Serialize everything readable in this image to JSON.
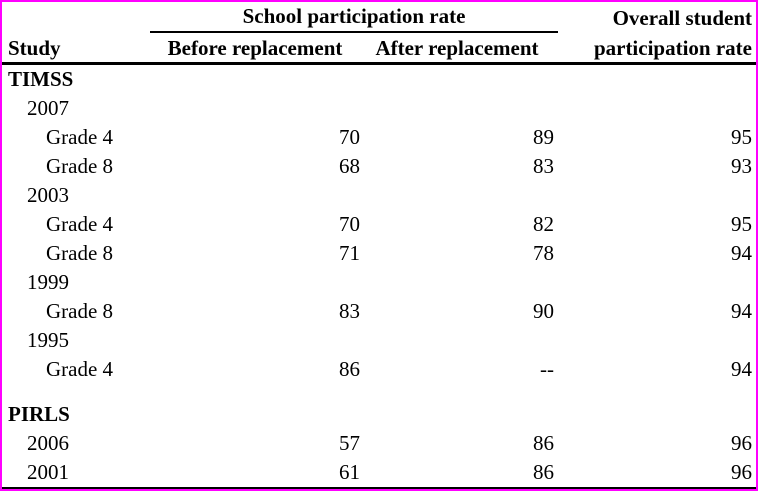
{
  "colors": {
    "frame_border": "#ff00ff",
    "text": "#000000",
    "rule": "#000000",
    "background": "#ffffff"
  },
  "header": {
    "group_title": "School participation rate",
    "study": "Study",
    "before": "Before replacement",
    "after": "After replacement",
    "overall_line1": "Overall student",
    "overall_line2": "participation rate"
  },
  "rows": [
    {
      "label": "TIMSS",
      "indent": 0,
      "bold": true,
      "before": "",
      "after": "",
      "overall": ""
    },
    {
      "label": "2007",
      "indent": 1,
      "bold": false,
      "before": "",
      "after": "",
      "overall": ""
    },
    {
      "label": "Grade 4",
      "indent": 2,
      "bold": false,
      "before": "70",
      "after": "89",
      "overall": "95"
    },
    {
      "label": "Grade 8",
      "indent": 2,
      "bold": false,
      "before": "68",
      "after": "83",
      "overall": "93"
    },
    {
      "label": "2003",
      "indent": 1,
      "bold": false,
      "before": "",
      "after": "",
      "overall": ""
    },
    {
      "label": "Grade 4",
      "indent": 2,
      "bold": false,
      "before": "70",
      "after": "82",
      "overall": "95"
    },
    {
      "label": "Grade 8",
      "indent": 2,
      "bold": false,
      "before": "71",
      "after": "78",
      "overall": "94"
    },
    {
      "label": "1999",
      "indent": 1,
      "bold": false,
      "before": "",
      "after": "",
      "overall": ""
    },
    {
      "label": "Grade 8",
      "indent": 2,
      "bold": false,
      "before": "83",
      "after": "90",
      "overall": "94"
    },
    {
      "label": "1995",
      "indent": 1,
      "bold": false,
      "before": "",
      "after": "",
      "overall": ""
    },
    {
      "label": "Grade 4",
      "indent": 2,
      "bold": false,
      "before": "86",
      "after": "--",
      "overall": "94"
    },
    {
      "spacer": true
    },
    {
      "label": "PIRLS",
      "indent": 0,
      "bold": true,
      "before": "",
      "after": "",
      "overall": ""
    },
    {
      "label": "2006",
      "indent": 1,
      "bold": false,
      "before": "57",
      "after": "86",
      "overall": "96"
    },
    {
      "label": "2001",
      "indent": 1,
      "bold": false,
      "before": "61",
      "after": "86",
      "overall": "96"
    }
  ]
}
